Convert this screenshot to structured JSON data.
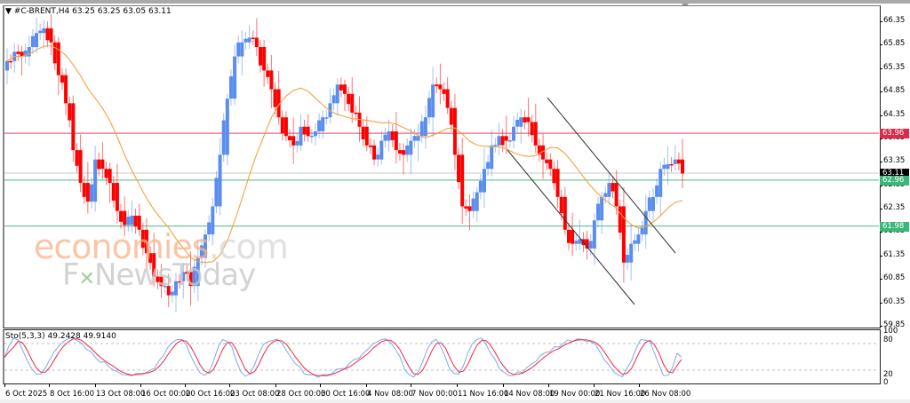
{
  "window": {
    "symbol_line": "▼ #C-BRENT,H4  63.25 63.25 63.05 63.11",
    "symbol": "#C-BRENT",
    "timeframe": "H4",
    "ohlc": {
      "open": "63.25",
      "high": "63.25",
      "low": "63.05",
      "close": "63.11"
    }
  },
  "watermark": {
    "line1_main": "economies",
    "line1_suffix": ".com",
    "line2_prefix": "F",
    "line2_x": "✕",
    "line2_main": "NewsToday"
  },
  "price_axis": {
    "labels": [
      "66.35",
      "65.85",
      "65.35",
      "64.85",
      "64.35",
      "63.85",
      "63.35",
      "62.85",
      "62.35",
      "61.85",
      "61.35",
      "60.85",
      "60.35",
      "59.85"
    ],
    "tags": [
      {
        "value": "63.96",
        "color": "#e0284a",
        "kind": "resistance"
      },
      {
        "value": "63.11",
        "color": "#000000",
        "kind": "current-price"
      },
      {
        "value": "62.96",
        "color": "#3bb878",
        "kind": "support"
      },
      {
        "value": "61.98",
        "color": "#3bb878",
        "kind": "support"
      }
    ]
  },
  "stoch_axis": {
    "labels": [
      "100",
      "80",
      "20",
      "0"
    ]
  },
  "stochastic": {
    "label": "Sto(5,3,3) 49.2428 49.9140",
    "main": "49.2428",
    "signal": "49.9140"
  },
  "time_axis": {
    "labels": [
      "6 Oct 2025",
      "8 Oct 16:00",
      "13 Oct 08:00",
      "16 Oct 00:00",
      "20 Oct 16:00",
      "23 Oct 08:00",
      "28 Oct 00:00",
      "30 Oct 16:00",
      "4 Nov 08:00",
      "7 Nov 00:00",
      "11 Nov 16:00",
      "14 Nov 08:00",
      "19 Nov 00:00",
      "21 Nov 16:00",
      "26 Nov 08:00"
    ]
  },
  "colors": {
    "bull": "#5b8def",
    "bear": "#ff0000",
    "ma": "#f5a142",
    "resistance": "#e06a80",
    "support": "#6cc99a",
    "current_line": "#c8c8c8",
    "stoch_main": "#7fa8f0",
    "stoch_signal": "#f03a4a",
    "channel": "#333333"
  },
  "chart_data": {
    "type": "candlestick",
    "title": "#C-BRENT,H4",
    "ylim": [
      59.85,
      66.6
    ],
    "y_ticks": [
      66.35,
      65.85,
      65.35,
      64.85,
      64.35,
      63.85,
      63.35,
      62.85,
      62.35,
      61.85,
      61.35,
      60.85,
      60.35,
      59.85
    ],
    "horizontal_levels": [
      {
        "value": 63.96,
        "color": "red",
        "label": "resistance"
      },
      {
        "value": 62.96,
        "color": "green",
        "label": "support"
      },
      {
        "value": 61.98,
        "color": "green",
        "label": "support"
      },
      {
        "value": 63.11,
        "color": "gray",
        "label": "last price"
      }
    ],
    "trend_channel": {
      "upper": {
        "from": [
          616,
          110
        ],
        "to": [
          760,
          285
        ]
      },
      "lower": {
        "from": [
          571,
          169
        ],
        "to": [
          714,
          343
        ]
      }
    },
    "x_labels": [
      "6 Oct 2025",
      "8 Oct 16:00",
      "13 Oct 08:00",
      "16 Oct 00:00",
      "20 Oct 16:00",
      "23 Oct 08:00",
      "28 Oct 00:00",
      "30 Oct 16:00",
      "4 Nov 08:00",
      "7 Nov 00:00",
      "11 Nov 16:00",
      "14 Nov 08:00",
      "19 Nov 00:00",
      "21 Nov 16:00",
      "26 Nov 08:00"
    ],
    "approx_closes": [
      65.5,
      65.7,
      65.6,
      65.8,
      66.1,
      66.2,
      65.9,
      65.2,
      64.6,
      63.6,
      62.9,
      62.5,
      63.4,
      63.2,
      62.9,
      62.3,
      62.0,
      62.2,
      61.9,
      61.4,
      60.9,
      60.7,
      60.5,
      60.8,
      61.0,
      60.7,
      61.3,
      61.8,
      62.4,
      63.5,
      64.7,
      65.6,
      65.9,
      66.0,
      65.8,
      65.3,
      64.9,
      64.3,
      63.9,
      63.7,
      64.1,
      63.9,
      64.0,
      64.3,
      64.6,
      65.0,
      64.8,
      64.4,
      64.1,
      63.7,
      63.4,
      63.8,
      64.0,
      63.6,
      63.5,
      63.8,
      63.9,
      64.3,
      65.0,
      64.9,
      64.5,
      63.5,
      62.4,
      62.3,
      62.7,
      63.2,
      63.7,
      63.9,
      63.8,
      64.1,
      64.3,
      64.2,
      63.7,
      63.4,
      63.2,
      62.6,
      61.9,
      61.6,
      61.7,
      61.5,
      62.1,
      62.6,
      62.9,
      62.4,
      61.2,
      61.6,
      61.8,
      62.3,
      62.6,
      63.2,
      63.3,
      63.4,
      63.1
    ],
    "moving_average": {
      "type": "MA",
      "color": "orange"
    },
    "indicator": {
      "name": "Stochastic",
      "params": "5,3,3",
      "main": 49.2428,
      "signal": 49.914,
      "levels": [
        80,
        20
      ],
      "ylim": [
        0,
        100
      ]
    }
  }
}
